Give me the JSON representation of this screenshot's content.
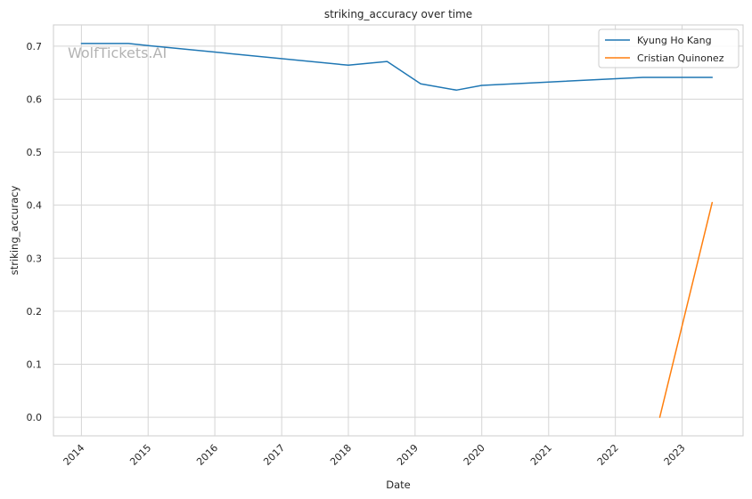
{
  "chart_data": {
    "type": "line",
    "title": "striking_accuracy over time",
    "xlabel": "Date",
    "ylabel": "striking_accuracy",
    "watermark": "WolfTickets.AI",
    "x_ticks": [
      "2014",
      "2015",
      "2016",
      "2017",
      "2018",
      "2019",
      "2020",
      "2021",
      "2022",
      "2023"
    ],
    "y_ticks": [
      "0.0",
      "0.1",
      "0.2",
      "0.3",
      "0.4",
      "0.5",
      "0.6",
      "0.7"
    ],
    "xlim": [
      "2013-08-01",
      "2023-12-01"
    ],
    "ylim": [
      -0.035,
      0.74
    ],
    "grid": true,
    "legend": "top-right",
    "series": [
      {
        "name": "Kyung Ho Kang",
        "color": "#1f77b4",
        "x": [
          "2014-01-01",
          "2014-09-15",
          "2015-01-01",
          "2018-01-01",
          "2018-08-01",
          "2019-02-01",
          "2019-08-15",
          "2020-01-01",
          "2022-06-01",
          "2023-06-15"
        ],
        "y": [
          0.705,
          0.705,
          0.701,
          0.664,
          0.671,
          0.629,
          0.617,
          0.626,
          0.641,
          0.641
        ]
      },
      {
        "name": "Cristian Quinonez",
        "color": "#ff7f0e",
        "x": [
          "2022-09-01",
          "2023-06-15"
        ],
        "y": [
          0.0,
          0.405
        ]
      }
    ]
  }
}
